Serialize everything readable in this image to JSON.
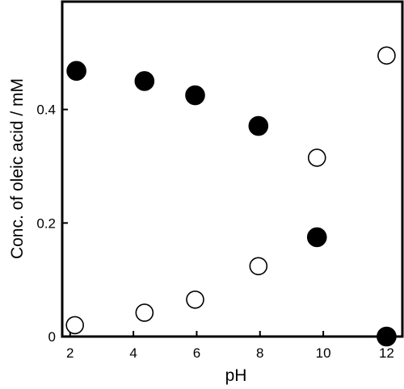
{
  "chart_data": {
    "type": "scatter",
    "title": "",
    "xlabel": "pH",
    "ylabel": "Conc. of oleic acid / mM",
    "xlim": [
      1.75,
      12.5
    ],
    "ylim": [
      0,
      0.59
    ],
    "xticks": [
      2,
      4,
      6,
      8,
      10,
      12
    ],
    "xtick_labels": [
      "2",
      "4",
      "6",
      "8",
      "10",
      "12"
    ],
    "yticks": [
      0,
      0.2,
      0.4
    ],
    "ytick_labels": [
      "0",
      "0.2",
      "0.4"
    ],
    "grid": false,
    "legend": "none",
    "series": [
      {
        "marker": "filled-circle",
        "color": "#000000",
        "x": [
          2.2,
          4.35,
          5.95,
          7.95,
          9.8,
          12.0
        ],
        "y": [
          0.468,
          0.45,
          0.425,
          0.371,
          0.175,
          0.0
        ]
      },
      {
        "marker": "open-circle",
        "color": "#000000",
        "x": [
          2.15,
          4.35,
          5.95,
          7.95,
          9.8,
          12.0
        ],
        "y": [
          0.02,
          0.042,
          0.065,
          0.124,
          0.315,
          0.495
        ]
      }
    ]
  }
}
